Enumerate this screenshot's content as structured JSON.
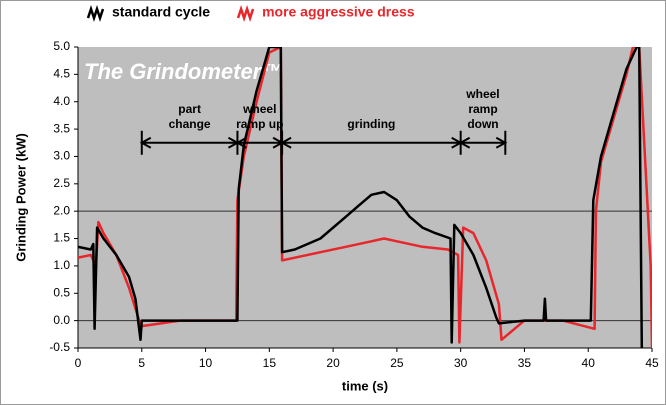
{
  "chart_data": {
    "type": "line",
    "title": "The Grindometer™",
    "x_label": "time (s)",
    "y_label": "Grinding Power (kW)",
    "xlim": [
      0,
      45
    ],
    "xticks": [
      0,
      5,
      10,
      15,
      20,
      25,
      30,
      35,
      40,
      45
    ],
    "ylim": [
      -0.5,
      5
    ],
    "yticks": [
      {
        "value": -0.5,
        "label": "-0.5"
      },
      {
        "value": 0,
        "label": "0.0"
      },
      {
        "value": 0.5,
        "label": "0.5"
      },
      {
        "value": 1,
        "label": "1.0"
      },
      {
        "value": 1.5,
        "label": "1.5"
      },
      {
        "value": 2,
        "label": "2.0"
      },
      {
        "value": 2.5,
        "label": "2.5"
      },
      {
        "value": 3,
        "label": "3.0"
      },
      {
        "value": 3.5,
        "label": "3.5"
      },
      {
        "value": 4,
        "label": "4.0"
      },
      {
        "value": 4.5,
        "label": "4.5"
      },
      {
        "value": 5,
        "label": "5.0"
      }
    ],
    "grid_lines": [
      0,
      2
    ],
    "legend": "top-left",
    "annotations": [
      {
        "lines": [
          "part",
          "change"
        ],
        "x": [
          5,
          12.5
        ]
      },
      {
        "lines": [
          "wheel",
          "ramp up"
        ],
        "x": [
          12.5,
          16
        ]
      },
      {
        "lines": [
          "grinding"
        ],
        "x": [
          16,
          30
        ]
      },
      {
        "lines": [
          "wheel",
          "ramp",
          "down"
        ],
        "x": [
          30,
          33.5
        ]
      }
    ],
    "series": [
      {
        "name": "standard cycle",
        "color": "#000000",
        "x": [
          0,
          1,
          1.2,
          1.3,
          1.5,
          2,
          3,
          4,
          4.5,
          4.9,
          5,
          8,
          12.5,
          12.6,
          13,
          14,
          15,
          15.9,
          16,
          17,
          19,
          21,
          22,
          23,
          24,
          25,
          26,
          27,
          28,
          29.2,
          29.3,
          29.5,
          30,
          31,
          32,
          32.8,
          33,
          35,
          36.5,
          36.6,
          36.7,
          38,
          40.2,
          40.4,
          41,
          42,
          43,
          43.8,
          44,
          44.2
        ],
        "values": [
          1.35,
          1.3,
          1.4,
          -0.15,
          1.7,
          1.5,
          1.2,
          0.8,
          0.4,
          -0.35,
          0,
          0,
          0,
          2.4,
          3.2,
          4.2,
          5,
          5,
          1.25,
          1.3,
          1.5,
          1.9,
          2.1,
          2.3,
          2.35,
          2.2,
          1.9,
          1.7,
          1.6,
          1.5,
          -0.4,
          1.75,
          1.6,
          1.2,
          0.6,
          0.05,
          -0.05,
          0,
          0,
          0.4,
          0,
          0,
          0,
          2.2,
          3.0,
          3.8,
          4.6,
          5,
          5,
          -0.5
        ]
      },
      {
        "name": "more aggressive dress",
        "color": "#e8262b",
        "x": [
          0,
          1,
          1.4,
          1.6,
          2,
          3,
          4,
          4.8,
          5,
          8,
          12.4,
          12.5,
          13,
          14,
          15,
          15.9,
          16,
          17,
          19,
          21,
          23,
          24,
          25,
          27,
          29,
          29.8,
          29.9,
          30.2,
          31,
          32,
          33,
          33.2,
          35,
          38,
          40.5,
          40.6,
          41,
          42,
          43,
          43.5,
          44,
          44.9,
          45
        ],
        "values": [
          1.15,
          1.2,
          1.0,
          1.8,
          1.6,
          1.2,
          0.6,
          0,
          -0.1,
          0,
          0,
          2.2,
          3.0,
          4.0,
          4.9,
          5,
          1.1,
          1.15,
          1.25,
          1.35,
          1.45,
          1.5,
          1.45,
          1.35,
          1.3,
          1.2,
          -0.4,
          1.7,
          1.6,
          1.1,
          0.3,
          -0.35,
          0,
          0,
          -0.15,
          2.0,
          2.9,
          3.7,
          4.5,
          5,
          5,
          1.0,
          -0.5
        ]
      }
    ]
  }
}
